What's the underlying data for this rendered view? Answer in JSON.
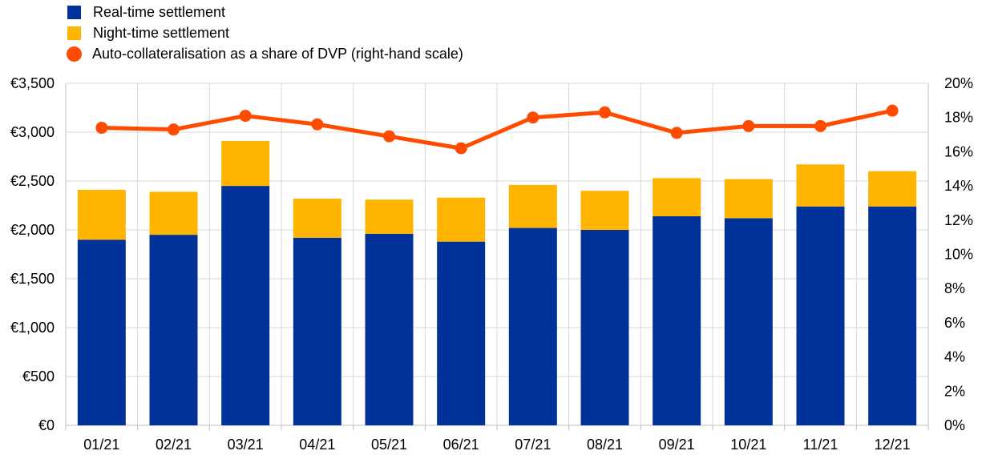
{
  "chart_data": {
    "type": "bar",
    "stacked": true,
    "categories": [
      "01/21",
      "02/21",
      "03/21",
      "04/21",
      "05/21",
      "06/21",
      "07/21",
      "08/21",
      "09/21",
      "10/21",
      "11/21",
      "12/21"
    ],
    "series": [
      {
        "name": "Real-time settlement",
        "type": "bar",
        "axis": "left",
        "color": "#003299",
        "values": [
          1900,
          1950,
          2450,
          1920,
          1960,
          1880,
          2020,
          2000,
          2140,
          2120,
          2240,
          2240
        ]
      },
      {
        "name": "Night-time settlement",
        "type": "bar",
        "axis": "left",
        "color": "#FFB400",
        "values": [
          510,
          440,
          460,
          400,
          350,
          450,
          440,
          400,
          390,
          400,
          430,
          360
        ]
      },
      {
        "name": "Auto-collateralisation as a share of DVP (right-hand scale)",
        "type": "line",
        "axis": "right",
        "color": "#FF4B00",
        "values": [
          17.4,
          17.3,
          18.1,
          17.6,
          16.9,
          16.2,
          18.0,
          18.3,
          17.1,
          17.5,
          17.5,
          18.4
        ]
      }
    ],
    "y_left": {
      "min": 0,
      "max": 3500,
      "ticks": [
        "€0",
        "€500",
        "€1,000",
        "€1,500",
        "€2,000",
        "€2,500",
        "€3,000",
        "€3,500"
      ]
    },
    "y_right": {
      "min": 0,
      "max": 20,
      "ticks": [
        "0%",
        "2%",
        "4%",
        "6%",
        "8%",
        "10%",
        "12%",
        "14%",
        "16%",
        "18%",
        "20%"
      ]
    },
    "grid": true,
    "legend_position": "top-left"
  }
}
